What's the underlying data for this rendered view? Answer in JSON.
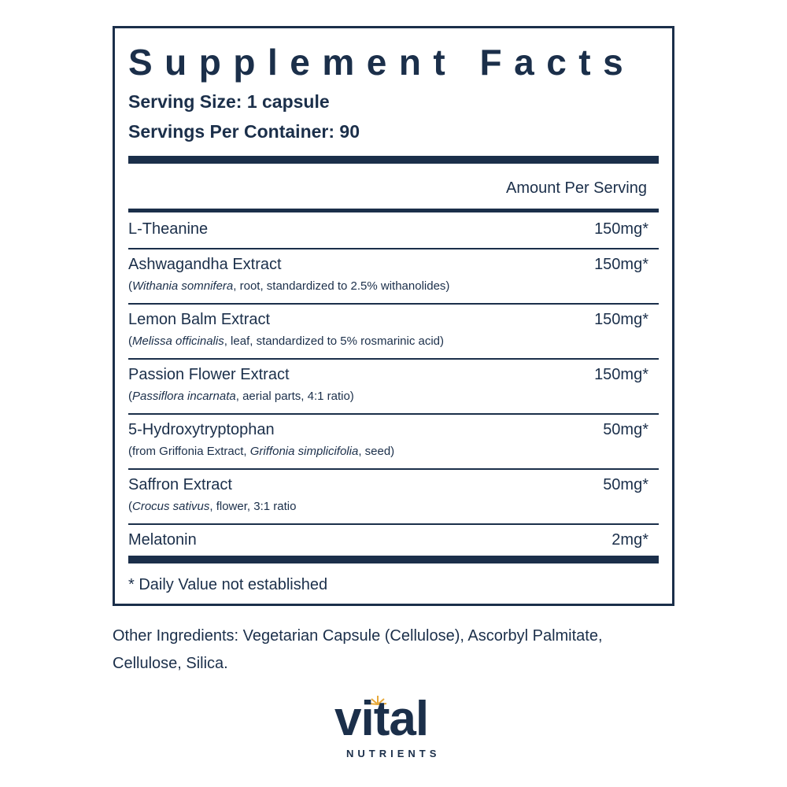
{
  "header": {
    "title": "Supplement Facts",
    "serving_size": "Serving Size: 1 capsule",
    "servings_per_container": "Servings Per Container: 90"
  },
  "table": {
    "column_header": "Amount Per Serving",
    "rows": [
      {
        "name": "L-Theanine",
        "amount": "150mg*"
      },
      {
        "name": "Ashwagandha Extract",
        "amount": "150mg*",
        "description": {
          "prefix": "(",
          "italic": "Withania somnifera",
          "suffix": ", root, standardized to 2.5% withanolides)"
        }
      },
      {
        "name": "Lemon Balm Extract",
        "amount": "150mg*",
        "description": {
          "prefix": "(",
          "italic": "Melissa officinalis",
          "suffix": ", leaf, standardized to 5% rosmarinic acid)"
        }
      },
      {
        "name": "Passion Flower Extract",
        "amount": "150mg*",
        "description": {
          "prefix": "(",
          "italic": "Passiflora incarnata",
          "suffix": ", aerial parts, 4:1 ratio)"
        }
      },
      {
        "name": "5-Hydroxytryptophan",
        "amount": "50mg*",
        "description": {
          "prefix": "(from Griffonia Extract, ",
          "italic": "Griffonia simplicifolia",
          "suffix": ", seed)"
        }
      },
      {
        "name": "Saffron Extract",
        "amount": "50mg*",
        "description": {
          "prefix": "(",
          "italic": "Crocus sativus",
          "suffix": ", flower, 3:1 ratio"
        }
      },
      {
        "name": "Melatonin",
        "amount": "2mg*"
      }
    ],
    "footnote": "* Daily Value not established"
  },
  "other_ingredients": {
    "line1": "Other Ingredients: Vegetarian Capsule (Cellulose), Ascorbyl Palmitate,",
    "line2": "Cellulose, Silica."
  },
  "logo": {
    "brand": "vital",
    "tagline": "NUTRIENTS"
  }
}
